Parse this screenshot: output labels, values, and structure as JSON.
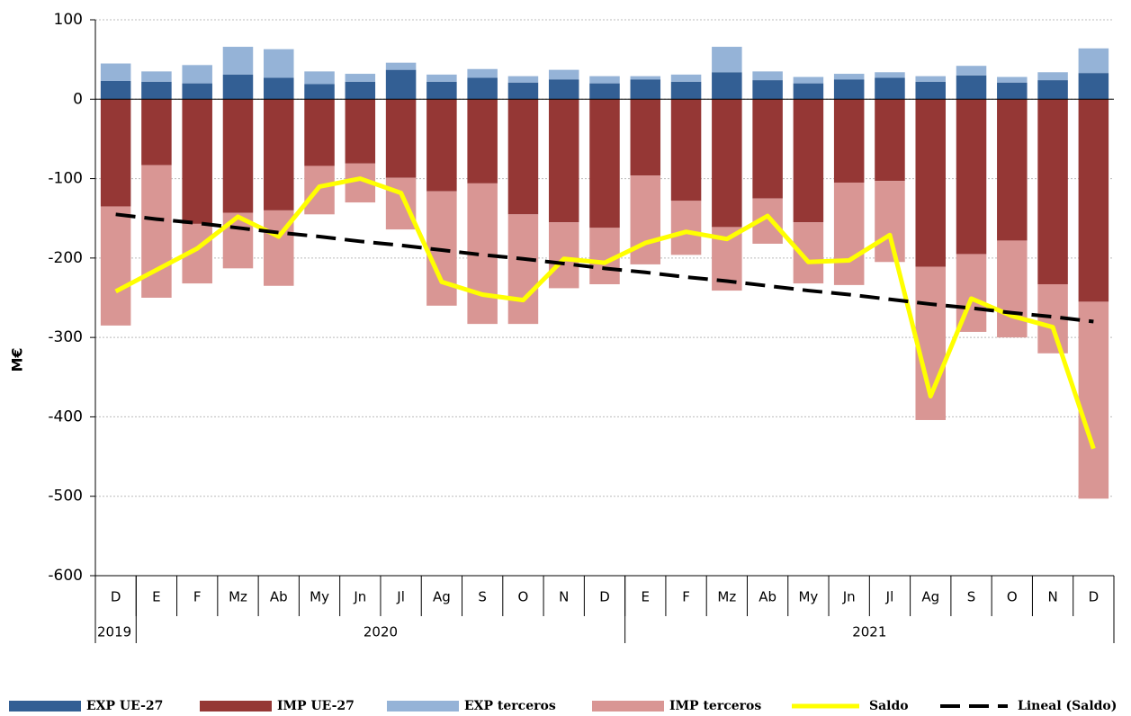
{
  "chart_data": {
    "type": "bar",
    "stacked": true,
    "ylabel": "M€",
    "categories": [
      "D",
      "E",
      "F",
      "Mz",
      "Ab",
      "My",
      "Jn",
      "Jl",
      "Ag",
      "S",
      "O",
      "N",
      "D",
      "E",
      "F",
      "Mz",
      "Ab",
      "My",
      "Jn",
      "Jl",
      "Ag",
      "S",
      "O",
      "N",
      "D"
    ],
    "groups": [
      {
        "label": "2019",
        "categories": 1
      },
      {
        "label": "2020",
        "categories": 12
      },
      {
        "label": "2021",
        "categories": 12
      }
    ],
    "series": [
      {
        "name": "EXP UE-27",
        "kind": "bar",
        "color": "#335f94",
        "values": [
          23,
          22,
          20,
          31,
          27,
          19,
          22,
          37,
          22,
          27,
          21,
          25,
          20,
          25,
          22,
          34,
          24,
          20,
          25,
          27,
          22,
          30,
          21,
          24,
          33
        ]
      },
      {
        "name": "IMP UE-27",
        "kind": "bar",
        "color": "#953735",
        "values": [
          -135,
          -83,
          -157,
          -143,
          -140,
          -84,
          -81,
          -99,
          -116,
          -106,
          -145,
          -155,
          -162,
          -96,
          -128,
          -161,
          -125,
          -155,
          -105,
          -103,
          -211,
          -195,
          -178,
          -233,
          -255
        ]
      },
      {
        "name": "EXP terceros",
        "kind": "bar",
        "color": "#95b3d7",
        "values": [
          22,
          13,
          23,
          35,
          36,
          16,
          10,
          9,
          9,
          11,
          8,
          12,
          9,
          4,
          9,
          32,
          11,
          8,
          7,
          7,
          7,
          12,
          7,
          10,
          31
        ]
      },
      {
        "name": "IMP terceros",
        "kind": "bar",
        "color": "#d99694",
        "values": [
          -150,
          -167,
          -75,
          -70,
          -95,
          -61,
          -49,
          -65,
          -144,
          -177,
          -138,
          -83,
          -71,
          -112,
          -68,
          -80,
          -57,
          -77,
          -129,
          -102,
          -193,
          -98,
          -122,
          -87,
          -248
        ]
      },
      {
        "name": "Saldo",
        "kind": "line",
        "color": "#ffff00",
        "values": [
          -242,
          -215,
          -188,
          -148,
          -173,
          -110,
          -100,
          -118,
          -230,
          -246,
          -253,
          -201,
          -206,
          -181,
          -167,
          -176,
          -147,
          -205,
          -203,
          -171,
          -374,
          -251,
          -273,
          -287,
          -440
        ]
      },
      {
        "name": "Lineal (Saldo)",
        "kind": "line",
        "dashed": true,
        "color": "#000000",
        "values": [
          -145,
          -151,
          -156,
          -162,
          -168,
          -173,
          -179,
          -184,
          -190,
          -196,
          -201,
          -207,
          -213,
          -218,
          -224,
          -229,
          -235,
          -241,
          -246,
          -252,
          -258,
          -263,
          -269,
          -274,
          -280
        ]
      }
    ],
    "ylim": [
      -600,
      100
    ],
    "yticks": [
      100,
      0,
      -100,
      -200,
      -300,
      -400,
      -500,
      -600
    ],
    "grid": true,
    "legend": "bottom"
  }
}
